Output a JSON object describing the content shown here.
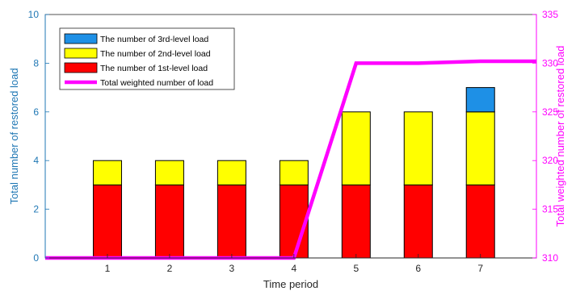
{
  "chart_data": {
    "type": "bar",
    "stacked": true,
    "categories": [
      "1",
      "2",
      "3",
      "4",
      "5",
      "6",
      "7"
    ],
    "series": [
      {
        "name": "The number of 1st-level load",
        "color": "#ff0000",
        "axis": "left",
        "values": [
          3,
          3,
          3,
          3,
          3,
          3,
          3
        ]
      },
      {
        "name": "The number of 2nd-level load",
        "color": "#ffff00",
        "axis": "left",
        "values": [
          1,
          1,
          1,
          1,
          3,
          3,
          3
        ]
      },
      {
        "name": "The number of 3rd-level load",
        "color": "#1e90e6",
        "axis": "left",
        "values": [
          0,
          0,
          0,
          0,
          0,
          0,
          1
        ]
      }
    ],
    "line_series": {
      "name": "Total weighted number of load",
      "type": "line",
      "axis": "right",
      "color": "#ff00ff",
      "x": [
        0,
        1,
        2,
        3,
        4,
        5,
        6,
        7,
        7.9
      ],
      "values": [
        310,
        310,
        310,
        310,
        310,
        330,
        330,
        330.2,
        330.2
      ]
    },
    "xlabel": "Time period",
    "ylabel_left": "Total number of restored load",
    "ylabel_right": "Total weighted number of restored load",
    "ylim_left": [
      0,
      10
    ],
    "ylim_right": [
      310,
      335
    ],
    "xlim": [
      0,
      7.9
    ],
    "yticks_left": [
      "0",
      "2",
      "4",
      "6",
      "8",
      "10"
    ],
    "yticks_right": [
      "310",
      "315",
      "320",
      "325",
      "330",
      "335"
    ],
    "left_axis_color": "#1f77b4",
    "right_axis_color": "#ff00ff",
    "legend_placement": "top-left",
    "legend_order": [
      "The number of 3rd-level load",
      "The number of 2nd-level load",
      "The number of 1st-level load",
      "Total weighted number of load"
    ],
    "grid": false
  }
}
